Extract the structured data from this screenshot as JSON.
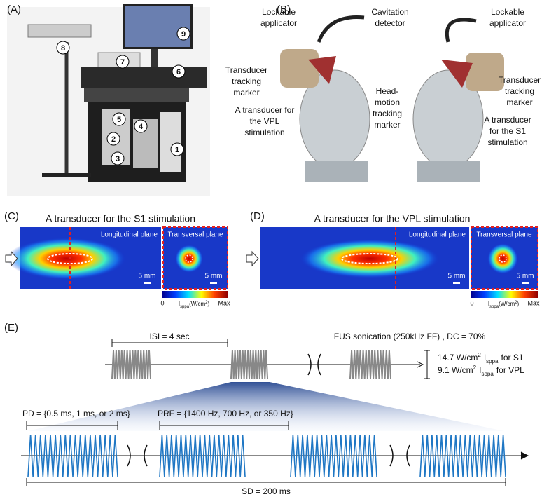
{
  "panel_a": {
    "label": "(A)",
    "markers": [
      "1",
      "2",
      "3",
      "4",
      "5",
      "6",
      "7",
      "8",
      "9"
    ]
  },
  "panel_b": {
    "label": "(B)",
    "annotations": [
      [
        "Lockable",
        "applicator"
      ],
      [
        "Cavitation",
        "detector"
      ],
      [
        "Lockable",
        "applicator"
      ],
      [
        "Transducer",
        "tracking",
        "marker"
      ],
      [
        "Head-",
        "motion",
        "tracking",
        "marker"
      ],
      [
        "Transducer",
        "tracking",
        "marker"
      ],
      [
        "A transducer for",
        "the VPL",
        "stimulation"
      ],
      [
        "A transducer",
        "for the S1",
        "stimulation"
      ]
    ]
  },
  "panel_c": {
    "label": "(C)",
    "title": "A transducer for the S1 stimulation",
    "longitudinal": "Longitudinal plane",
    "transversal": "Transversal plane",
    "scale_bars": [
      "5 mm",
      "5 mm"
    ],
    "colorbar": {
      "min": "0",
      "label": [
        "I",
        "sppa",
        "(W/cm",
        "2",
        ")"
      ],
      "max": "Max"
    }
  },
  "panel_d": {
    "label": "(D)",
    "title": "A transducer for the VPL stimulation",
    "longitudinal": "Longitudinal plane",
    "transversal": "Transversal plane",
    "scale_bars": [
      "5 mm",
      "5 mm"
    ],
    "colorbar": {
      "min": "0",
      "label": [
        "I",
        "sppa",
        "(W/cm",
        "2",
        ")"
      ],
      "max": "Max"
    }
  },
  "panel_e": {
    "label": "(E)",
    "isi": "ISI = 4 sec",
    "sonication": "FUS sonication (250kHz FF) , DC = 70%",
    "intensities": [
      [
        "14.7 W/cm",
        "2",
        "I",
        "sppa",
        "for S1"
      ],
      [
        "9.1 W/cm",
        "2",
        "I",
        "sppa",
        "for VPL"
      ]
    ],
    "pd": "PD = {0.5 ms, 1 ms, or 2 ms}",
    "prf": "PRF = {1400 Hz, 700 Hz, or 350 Hz}",
    "sd": "SD = 200 ms"
  }
}
